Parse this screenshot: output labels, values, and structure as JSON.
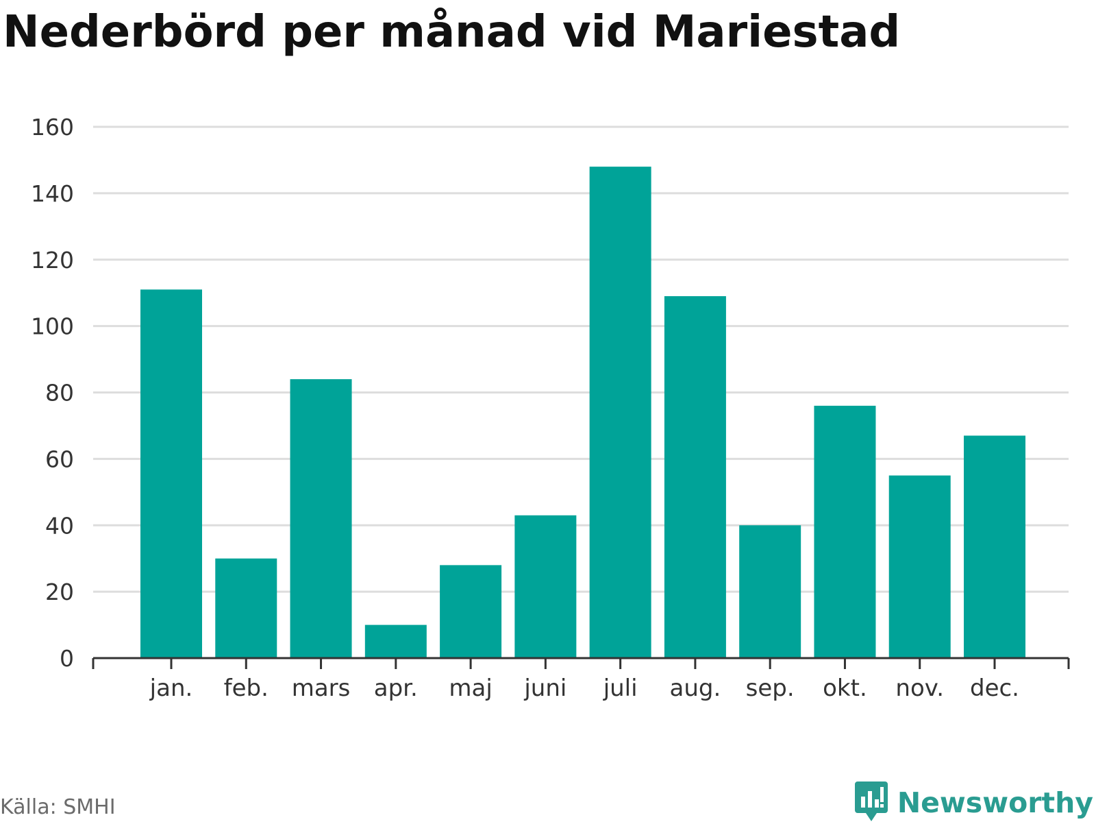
{
  "title": "Nederbörd per månad vid Mariestad",
  "source": "Källa: SMHI",
  "brand": {
    "name": "Newsworthy",
    "icon": "newsworthy-logo-icon"
  },
  "colors": {
    "bar": "#00a398",
    "grid": "#dddddd",
    "axis": "#333333",
    "brand": "#2a9c91"
  },
  "chart_data": {
    "type": "bar",
    "title": "Nederbörd per månad vid Mariestad",
    "xlabel": "",
    "ylabel": "",
    "categories": [
      "jan.",
      "feb.",
      "mars",
      "apr.",
      "maj",
      "juni",
      "juli",
      "aug.",
      "sep.",
      "okt.",
      "nov.",
      "dec."
    ],
    "values": [
      111,
      30,
      84,
      10,
      28,
      43,
      148,
      109,
      40,
      76,
      55,
      67
    ],
    "ylim": [
      0,
      160
    ],
    "yticks": [
      0,
      20,
      40,
      60,
      80,
      100,
      120,
      140,
      160
    ],
    "grid": true,
    "legend": "none"
  }
}
